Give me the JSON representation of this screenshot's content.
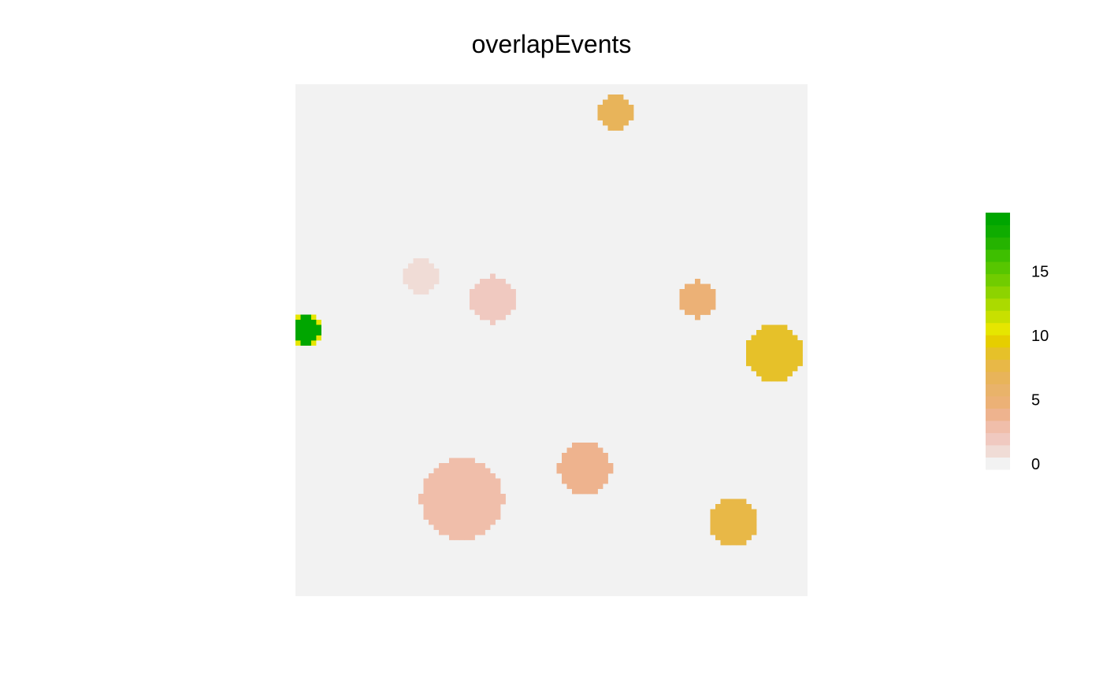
{
  "chart_data": {
    "type": "heatmap",
    "title": "overlapEvents",
    "xlabel": "",
    "ylabel": "",
    "grid": false,
    "legend_placement": "right",
    "background_value": 0,
    "background_color": "#F2F2F2",
    "grid_size": 100,
    "events": [
      {
        "cx": 2,
        "cy": 48,
        "r": 3,
        "value": 11,
        "color": "#E6E600"
      },
      {
        "cx": 2,
        "cy": 48,
        "r": 2.5,
        "value": 19,
        "color": "#00A600"
      },
      {
        "cx": 24.5,
        "cy": 37.5,
        "r": 3.5,
        "value": 1,
        "color": "#F0DCD6"
      },
      {
        "cx": 38.5,
        "cy": 42,
        "r": 4.5,
        "value": 2,
        "color": "#F0C9C0"
      },
      {
        "cx": 62.5,
        "cy": 5.5,
        "r": 3.5,
        "value": 7,
        "color": "#E8B45A"
      },
      {
        "cx": 78.5,
        "cy": 42,
        "r": 3.5,
        "value": 6,
        "color": "#ECB176"
      },
      {
        "cx": 93.5,
        "cy": 52.5,
        "r": 5.5,
        "value": 9,
        "color": "#E6C129"
      },
      {
        "cx": 32.5,
        "cy": 81,
        "r": 8,
        "value": 3,
        "color": "#F0BEAA"
      },
      {
        "cx": 56.5,
        "cy": 75,
        "r": 5,
        "value": 5,
        "color": "#EEB38E"
      },
      {
        "cx": 85.5,
        "cy": 85.5,
        "r": 4.5,
        "value": 8,
        "color": "#E8B847"
      }
    ],
    "legend": {
      "min": 0,
      "max": 20,
      "ticks": [
        "0",
        "5",
        "10",
        "15"
      ],
      "tick_values": [
        0,
        5,
        10,
        15
      ],
      "colors": [
        "#F2F2F2",
        "#F0DCD6",
        "#F0C9C0",
        "#F0BEAA",
        "#EEB38E",
        "#ECB176",
        "#E9B36A",
        "#E8B45A",
        "#E8B847",
        "#E6C129",
        "#E6CE00",
        "#E6E600",
        "#C8E000",
        "#ABDA00",
        "#8DD300",
        "#71CC00",
        "#57C600",
        "#3EBF00",
        "#25B300",
        "#0FAC00",
        "#00A600"
      ]
    }
  }
}
